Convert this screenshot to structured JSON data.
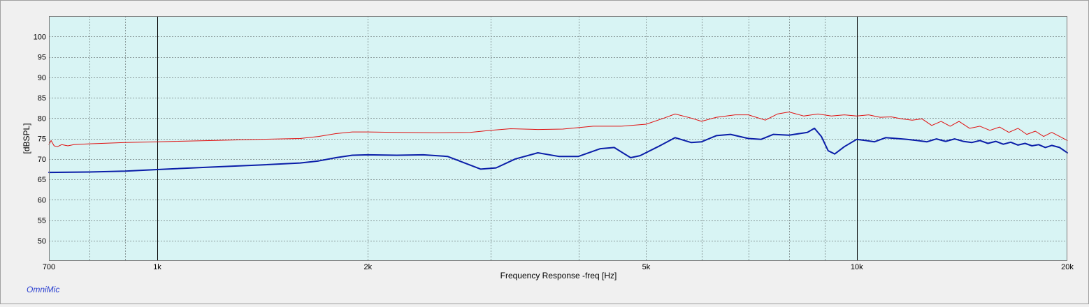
{
  "brand": {
    "label": "OmniMic"
  },
  "chart_data": {
    "type": "line",
    "title": "",
    "xlabel": "Frequency Response -freq [Hz]",
    "ylabel": "[dBSPL]",
    "xscale": "log",
    "xlim": [
      700,
      20000
    ],
    "ylim": [
      45,
      105
    ],
    "grid": true,
    "plot_background": "#d8f4f4",
    "x_major_ticks": [
      {
        "value": 700,
        "label": "700"
      },
      {
        "value": 1000,
        "label": "1k"
      },
      {
        "value": 2000,
        "label": "2k"
      },
      {
        "value": 5000,
        "label": "5k"
      },
      {
        "value": 10000,
        "label": "10k"
      },
      {
        "value": 20000,
        "label": "20k"
      }
    ],
    "x_minor_ticks": [
      800,
      900,
      3000,
      4000,
      6000,
      7000,
      8000,
      9000
    ],
    "x_decade_lines": [
      1000,
      10000
    ],
    "y_ticks": [
      {
        "value": 50,
        "label": "50"
      },
      {
        "value": 55,
        "label": "55"
      },
      {
        "value": 60,
        "label": "60"
      },
      {
        "value": 65,
        "label": "65"
      },
      {
        "value": 70,
        "label": "70"
      },
      {
        "value": 75,
        "label": "75"
      },
      {
        "value": 80,
        "label": "80"
      },
      {
        "value": 85,
        "label": "85"
      },
      {
        "value": 90,
        "label": "90"
      },
      {
        "value": 95,
        "label": "95"
      },
      {
        "value": 100,
        "label": "100"
      }
    ],
    "series": [
      {
        "color": "#e01010",
        "stroke": 1,
        "points": [
          [
            700,
            73.5
          ],
          [
            705,
            74.5
          ],
          [
            712,
            73.2
          ],
          [
            720,
            73.0
          ],
          [
            730,
            73.5
          ],
          [
            745,
            73.2
          ],
          [
            760,
            73.5
          ],
          [
            800,
            73.7
          ],
          [
            900,
            74.0
          ],
          [
            1000,
            74.2
          ],
          [
            1200,
            74.5
          ],
          [
            1400,
            74.8
          ],
          [
            1600,
            75.0
          ],
          [
            1700,
            75.5
          ],
          [
            1800,
            76.2
          ],
          [
            1900,
            76.6
          ],
          [
            2000,
            76.6
          ],
          [
            2200,
            76.5
          ],
          [
            2500,
            76.4
          ],
          [
            2800,
            76.5
          ],
          [
            3000,
            77.0
          ],
          [
            3200,
            77.4
          ],
          [
            3500,
            77.2
          ],
          [
            3800,
            77.3
          ],
          [
            4200,
            78.0
          ],
          [
            4600,
            78.0
          ],
          [
            5000,
            78.5
          ],
          [
            5300,
            80.0
          ],
          [
            5500,
            81.0
          ],
          [
            5800,
            80.0
          ],
          [
            6000,
            79.2
          ],
          [
            6300,
            80.2
          ],
          [
            6700,
            80.8
          ],
          [
            7000,
            80.8
          ],
          [
            7400,
            79.5
          ],
          [
            7700,
            81.0
          ],
          [
            8000,
            81.5
          ],
          [
            8400,
            80.5
          ],
          [
            8800,
            81.0
          ],
          [
            9200,
            80.5
          ],
          [
            9600,
            80.8
          ],
          [
            10000,
            80.5
          ],
          [
            10400,
            80.8
          ],
          [
            10800,
            80.2
          ],
          [
            11200,
            80.3
          ],
          [
            11600,
            79.8
          ],
          [
            12000,
            79.5
          ],
          [
            12400,
            79.8
          ],
          [
            12800,
            78.2
          ],
          [
            13200,
            79.2
          ],
          [
            13600,
            78.0
          ],
          [
            14000,
            79.2
          ],
          [
            14500,
            77.5
          ],
          [
            15000,
            78.0
          ],
          [
            15500,
            77.0
          ],
          [
            16000,
            77.8
          ],
          [
            16500,
            76.5
          ],
          [
            17000,
            77.5
          ],
          [
            17500,
            76.0
          ],
          [
            18000,
            76.8
          ],
          [
            18500,
            75.5
          ],
          [
            19000,
            76.5
          ],
          [
            19500,
            75.5
          ],
          [
            20000,
            74.5
          ]
        ]
      },
      {
        "color": "#0a1ea8",
        "stroke": 2,
        "points": [
          [
            700,
            66.7
          ],
          [
            800,
            66.8
          ],
          [
            900,
            67.0
          ],
          [
            1000,
            67.4
          ],
          [
            1200,
            68.0
          ],
          [
            1400,
            68.5
          ],
          [
            1600,
            69.0
          ],
          [
            1700,
            69.5
          ],
          [
            1800,
            70.3
          ],
          [
            1900,
            70.9
          ],
          [
            2000,
            71.0
          ],
          [
            2200,
            70.9
          ],
          [
            2400,
            71.0
          ],
          [
            2600,
            70.6
          ],
          [
            2750,
            69.0
          ],
          [
            2900,
            67.5
          ],
          [
            3050,
            67.8
          ],
          [
            3250,
            70.0
          ],
          [
            3500,
            71.5
          ],
          [
            3750,
            70.6
          ],
          [
            4000,
            70.6
          ],
          [
            4300,
            72.5
          ],
          [
            4500,
            72.8
          ],
          [
            4750,
            70.3
          ],
          [
            4900,
            70.8
          ],
          [
            5200,
            73.0
          ],
          [
            5500,
            75.2
          ],
          [
            5800,
            74.0
          ],
          [
            6000,
            74.2
          ],
          [
            6300,
            75.7
          ],
          [
            6600,
            76.0
          ],
          [
            7000,
            75.0
          ],
          [
            7300,
            74.8
          ],
          [
            7600,
            76.0
          ],
          [
            8000,
            75.8
          ],
          [
            8500,
            76.5
          ],
          [
            8700,
            77.5
          ],
          [
            8900,
            75.5
          ],
          [
            9100,
            72.0
          ],
          [
            9300,
            71.2
          ],
          [
            9600,
            73.0
          ],
          [
            10000,
            74.8
          ],
          [
            10300,
            74.5
          ],
          [
            10600,
            74.2
          ],
          [
            11000,
            75.2
          ],
          [
            11400,
            75.0
          ],
          [
            11800,
            74.8
          ],
          [
            12200,
            74.5
          ],
          [
            12600,
            74.2
          ],
          [
            13000,
            74.9
          ],
          [
            13400,
            74.3
          ],
          [
            13800,
            74.9
          ],
          [
            14200,
            74.3
          ],
          [
            14600,
            74.0
          ],
          [
            15000,
            74.5
          ],
          [
            15400,
            73.8
          ],
          [
            15800,
            74.3
          ],
          [
            16200,
            73.6
          ],
          [
            16600,
            74.1
          ],
          [
            17000,
            73.4
          ],
          [
            17400,
            73.8
          ],
          [
            17800,
            73.2
          ],
          [
            18200,
            73.5
          ],
          [
            18600,
            72.8
          ],
          [
            19000,
            73.3
          ],
          [
            19500,
            72.8
          ],
          [
            20000,
            71.5
          ]
        ]
      }
    ]
  }
}
